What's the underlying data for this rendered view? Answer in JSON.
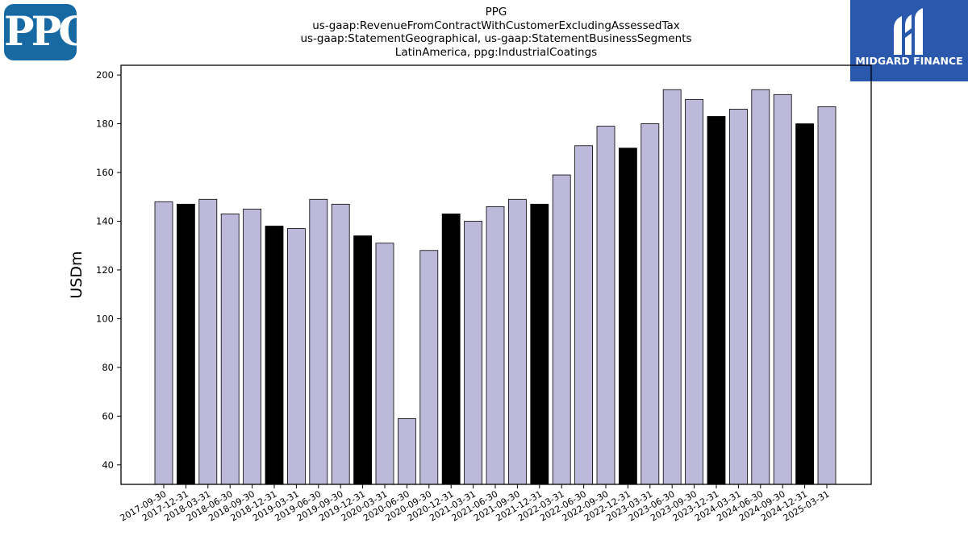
{
  "logos": {
    "left_text": "PPG",
    "right_text": "MIDGARD FINANCE"
  },
  "colors": {
    "bar_light": "#bdb9da",
    "bar_dark": "#000000",
    "ppg_blue": "#1769a4",
    "midgard_blue": "#2a58ad"
  },
  "chart_data": {
    "type": "bar",
    "title_lines": [
      "PPG",
      "us-gaap:RevenueFromContractWithCustomerExcludingAssessedTax",
      "us-gaap:StatementGeographical, us-gaap:StatementBusinessSegments",
      "LatinAmerica, ppg:IndustrialCoatings"
    ],
    "xlabel": "",
    "ylabel": "USDm",
    "ylim": [
      32,
      204
    ],
    "yticks": [
      40,
      60,
      80,
      100,
      120,
      140,
      160,
      180,
      200
    ],
    "grid": false,
    "categories": [
      "2017-09-30",
      "2017-12-31",
      "2018-03-31",
      "2018-06-30",
      "2018-09-30",
      "2018-12-31",
      "2019-03-31",
      "2019-06-30",
      "2019-09-30",
      "2019-12-31",
      "2020-03-31",
      "2020-06-30",
      "2020-09-30",
      "2020-12-31",
      "2021-03-31",
      "2021-06-30",
      "2021-09-30",
      "2021-12-31",
      "2022-03-31",
      "2022-06-30",
      "2022-09-30",
      "2022-12-31",
      "2023-03-31",
      "2023-06-30",
      "2023-09-30",
      "2023-12-31",
      "2024-03-31",
      "2024-06-30",
      "2024-09-30",
      "2024-12-31",
      "2025-03-31"
    ],
    "values": [
      148,
      147,
      149,
      143,
      145,
      138,
      137,
      149,
      147,
      134,
      131,
      59,
      128,
      143,
      140,
      146,
      149,
      147,
      159,
      171,
      179,
      170,
      180,
      194,
      190,
      183,
      186,
      194,
      192,
      180,
      187
    ],
    "highlight_year_end": true
  }
}
